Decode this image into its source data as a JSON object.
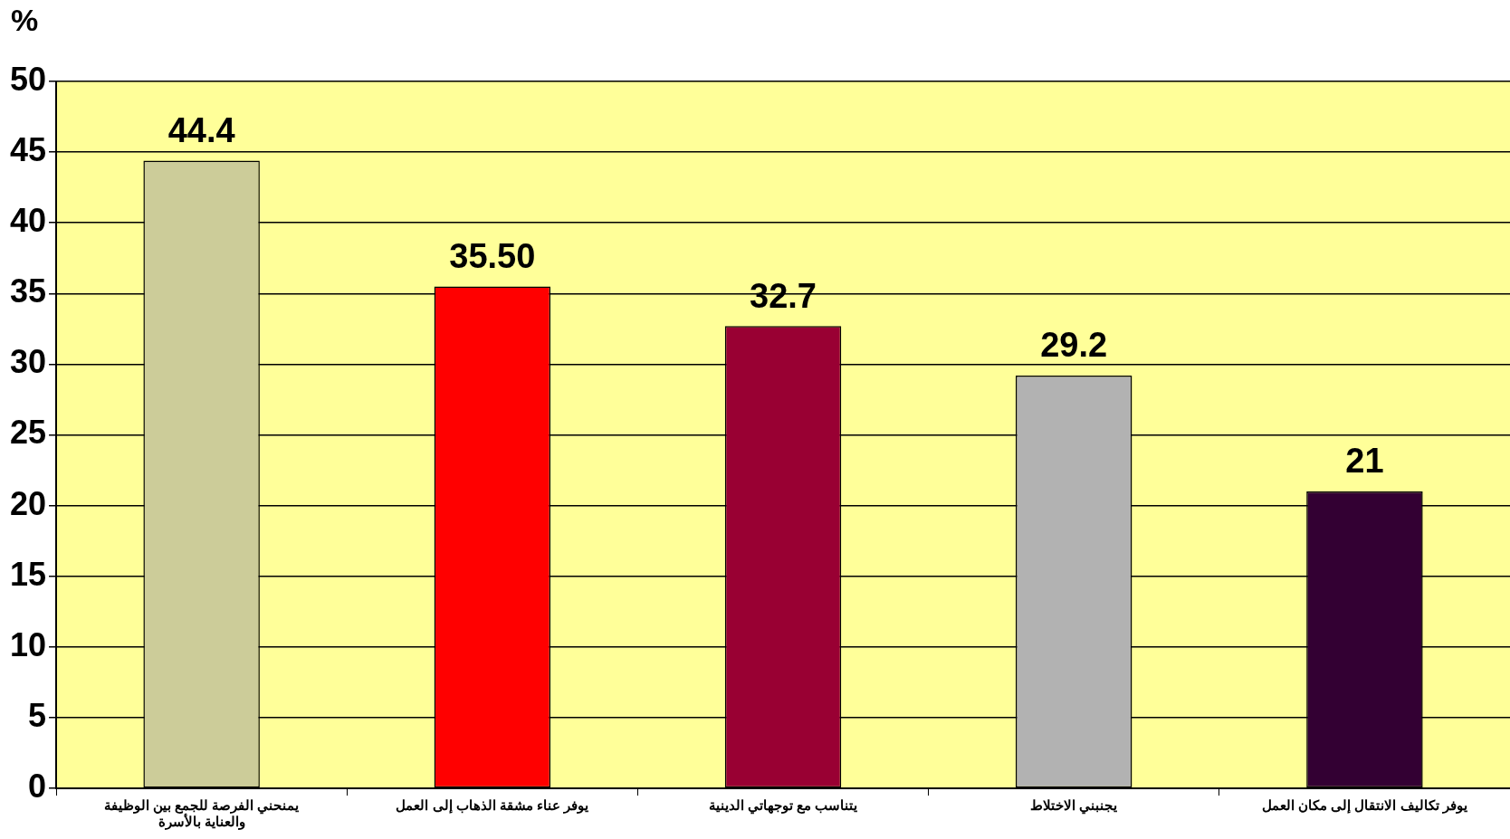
{
  "chart_data": {
    "type": "bar",
    "ylabel": "%",
    "categories": [
      "يمنحني الفرصة للجمع بين الوظيفة والعناية بالأسرة",
      "يوفر عناء مشقة الذهاب إلى العمل",
      "يتناسب مع توجهاتي الدينية",
      "يجنبني الاختلاط",
      "يوفر تكاليف الانتقال إلى مكان العمل"
    ],
    "values": [
      44.4,
      35.5,
      32.7,
      29.2,
      21
    ],
    "colors": [
      "#cccc99",
      "#ff0000",
      "#990033",
      "#b2b2b2",
      "#330033"
    ],
    "value_labels": [
      "44.4",
      "35.50",
      "32.7",
      "29.2",
      "21"
    ],
    "ylim": [
      0,
      50
    ],
    "yticks": [
      0,
      5,
      10,
      15,
      20,
      25,
      30,
      35,
      40,
      45,
      50
    ],
    "grid": "y"
  }
}
